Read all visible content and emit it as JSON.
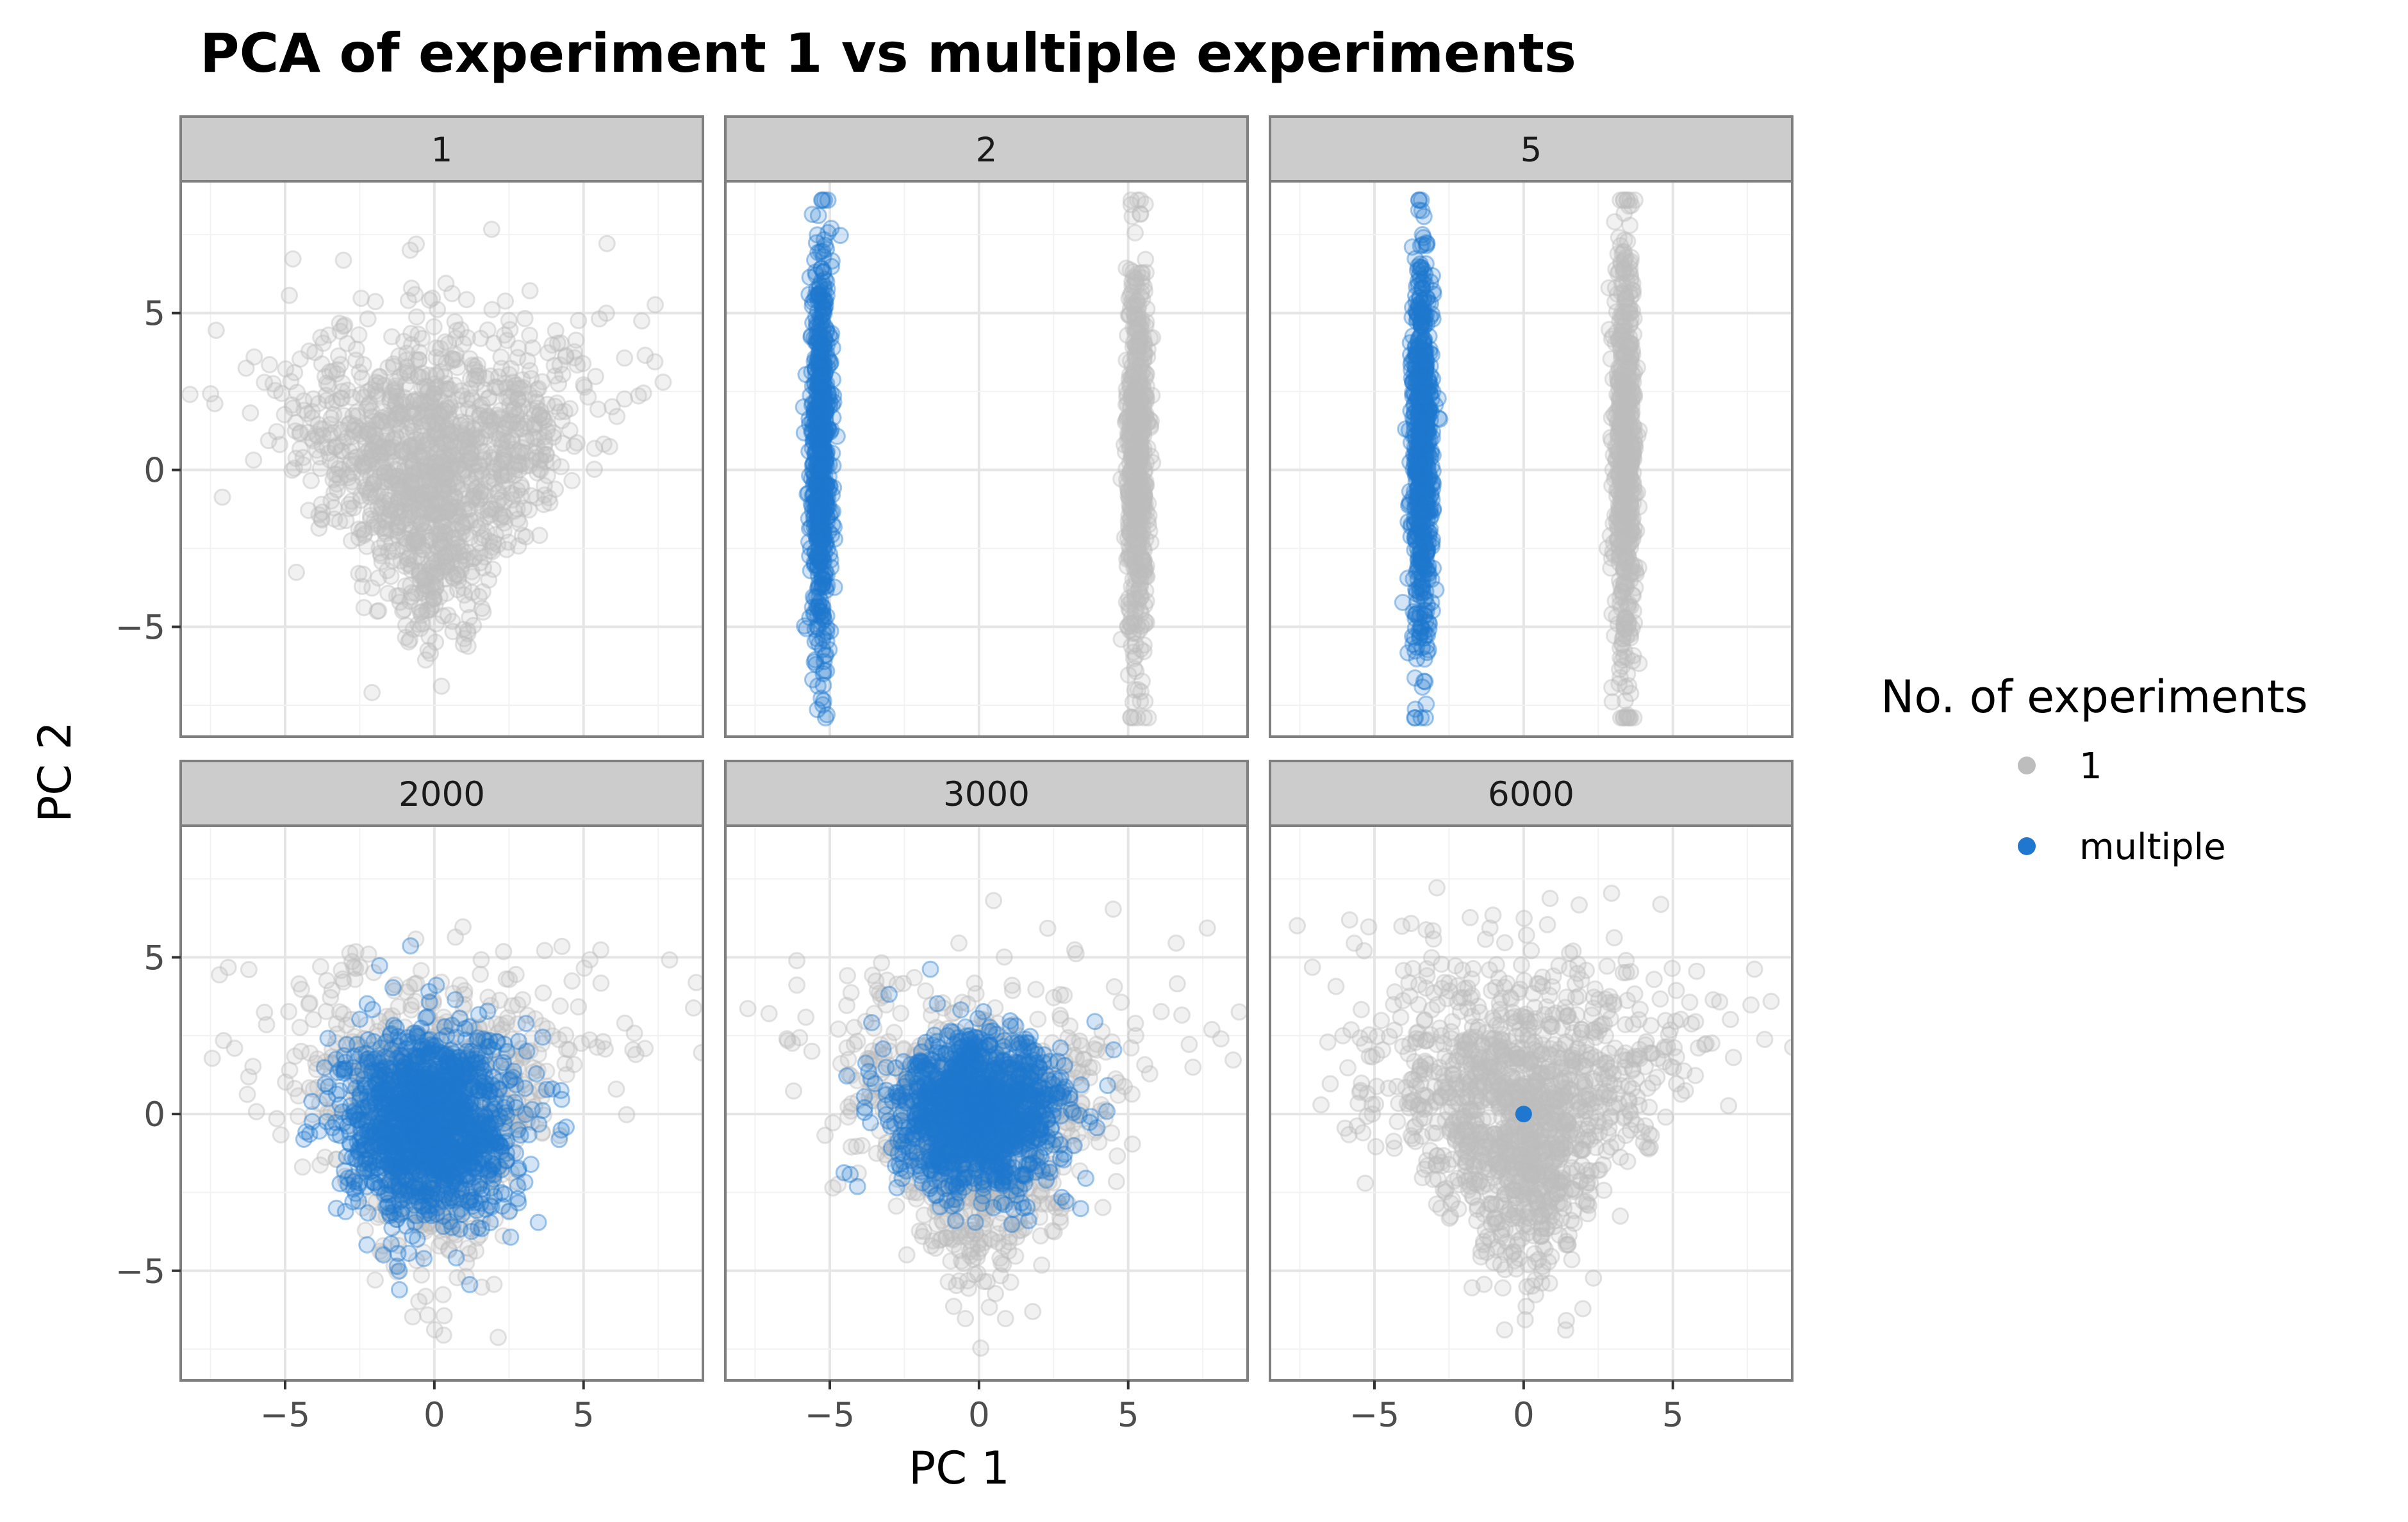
{
  "chart_data": {
    "type": "scatter",
    "title": "PCA of experiment 1 vs multiple experiments",
    "xlabel": "PC 1",
    "ylabel": "PC 2",
    "xlim": [
      -8.5,
      9
    ],
    "ylim": [
      -8.5,
      9.2
    ],
    "x_ticks": [
      -5,
      0,
      5
    ],
    "y_ticks": [
      -5,
      0,
      5
    ],
    "x_tick_labels": [
      "−5",
      "0",
      "5"
    ],
    "y_tick_labels": [
      "−5",
      "0",
      "5"
    ],
    "grid": true,
    "legend": {
      "title": "No. of experiments",
      "placement": "right",
      "entries": [
        {
          "label": "1",
          "color": "#bdbdbd"
        },
        {
          "label": "multiple",
          "color": "#1f77cf"
        }
      ]
    },
    "colors": {
      "one": "#bdbdbd",
      "multiple": "#1f77cf"
    },
    "facets": [
      {
        "label": "1",
        "series": [
          {
            "group": "1",
            "shape": "triangle",
            "cx": 0,
            "cy": 0.3,
            "sx": 2.2,
            "sy": 2.3,
            "n": 1400
          }
        ]
      },
      {
        "label": "2",
        "series": [
          {
            "group": "1",
            "shape": "band",
            "cx": 5.3,
            "cy": 0.5,
            "sx": 0.18,
            "sy": 3.2,
            "n": 700
          },
          {
            "group": "multiple",
            "shape": "band",
            "cx": -5.3,
            "cy": 0.5,
            "sx": 0.18,
            "sy": 3.2,
            "n": 700
          }
        ]
      },
      {
        "label": "5",
        "series": [
          {
            "group": "1",
            "shape": "band",
            "cx": 3.4,
            "cy": 0.5,
            "sx": 0.18,
            "sy": 3.2,
            "n": 700
          },
          {
            "group": "multiple",
            "shape": "band",
            "cx": -3.4,
            "cy": 0.5,
            "sx": 0.18,
            "sy": 3.2,
            "n": 700
          }
        ]
      },
      {
        "label": "2000",
        "series": [
          {
            "group": "1",
            "shape": "triangle",
            "cx": 0,
            "cy": 0.3,
            "sx": 2.2,
            "sy": 2.3,
            "n": 800
          },
          {
            "group": "multiple",
            "shape": "blob",
            "cx": -0.2,
            "cy": -0.3,
            "sx": 1.4,
            "sy": 1.5,
            "n": 1400
          }
        ]
      },
      {
        "label": "3000",
        "series": [
          {
            "group": "1",
            "shape": "triangle",
            "cx": 0,
            "cy": -0.3,
            "sx": 2.1,
            "sy": 2.2,
            "n": 900
          },
          {
            "group": "multiple",
            "shape": "blob",
            "cx": 0,
            "cy": 0,
            "sx": 1.4,
            "sy": 1.2,
            "n": 1300
          }
        ]
      },
      {
        "label": "6000",
        "series": [
          {
            "group": "1",
            "shape": "triangle",
            "cx": 0,
            "cy": 0.3,
            "sx": 2.2,
            "sy": 2.3,
            "n": 1400
          },
          {
            "group": "multiple",
            "shape": "point",
            "cx": 0,
            "cy": 0,
            "sx": 0,
            "sy": 0,
            "n": 1
          }
        ]
      }
    ]
  }
}
